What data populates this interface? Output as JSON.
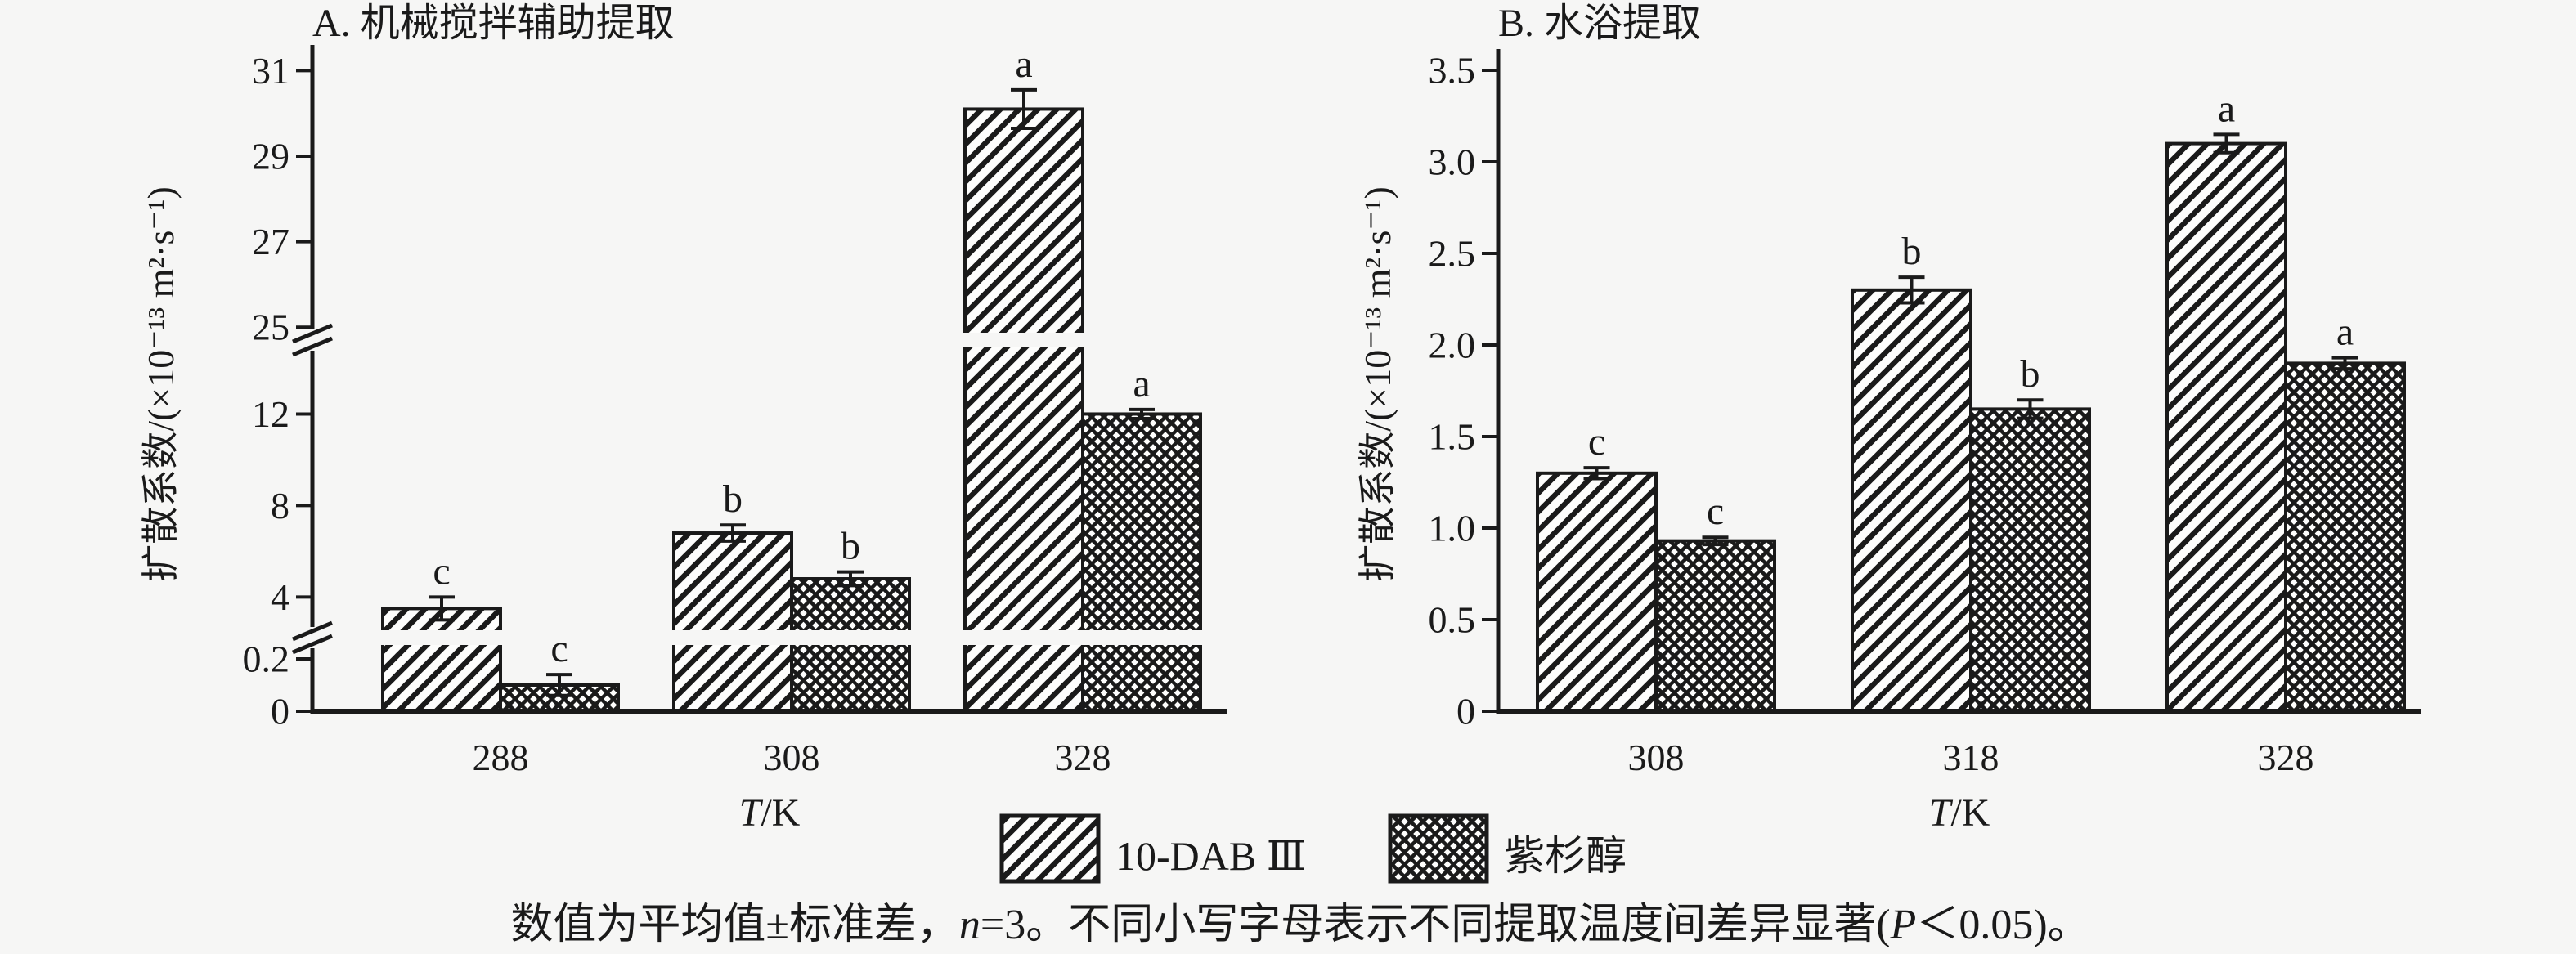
{
  "colors": {
    "background": "#f6f6f5",
    "ink": "#1a1a1a",
    "bar_fill_background": "#fdfdfc"
  },
  "chart_data": [
    {
      "type": "bar",
      "panel": "A",
      "title": "A. 机械搅拌辅助提取",
      "ylabel": "扩散系数/(×10⁻¹³ m²·s⁻¹)",
      "xlabel": "T/K",
      "xlabel_italic": "T",
      "xlabel_rest": "/K",
      "categories": [
        "288",
        "308",
        "328"
      ],
      "series": [
        {
          "name": "10-DAB Ⅲ",
          "pattern": "diagonal-hatch",
          "values": [
            3.5,
            6.8,
            30.1
          ],
          "errors": [
            0.5,
            0.35,
            0.45
          ],
          "sig_letters": [
            "c",
            "b",
            "a"
          ]
        },
        {
          "name": "紫杉醇",
          "pattern": "cross-hatch",
          "values": [
            0.1,
            4.8,
            12.0
          ],
          "errors": [
            0.04,
            0.3,
            0.2
          ],
          "sig_letters": [
            "c",
            "b",
            "a"
          ]
        }
      ],
      "y_ticks": [
        0,
        0.2,
        4,
        8,
        12,
        25,
        27,
        29,
        31
      ],
      "y_tick_labels": [
        "0",
        "0.2",
        "4",
        "8",
        "12",
        "25",
        "27",
        "29",
        "31"
      ],
      "axis_breaks": [
        [
          0.253,
          2.55
        ],
        [
          14.91,
          24.87
        ]
      ],
      "ylim": [
        0,
        31.6
      ],
      "grid": false
    },
    {
      "type": "bar",
      "panel": "B",
      "title": "B. 水浴提取",
      "ylabel": "扩散系数/(×10⁻¹³ m²·s⁻¹)",
      "xlabel": "T/K",
      "xlabel_italic": "T",
      "xlabel_rest": "/K",
      "categories": [
        "308",
        "318",
        "328"
      ],
      "series": [
        {
          "name": "10-DAB Ⅲ",
          "pattern": "diagonal-hatch",
          "values": [
            1.3,
            2.3,
            3.1
          ],
          "errors": [
            0.03,
            0.07,
            0.05
          ],
          "sig_letters": [
            "c",
            "b",
            "a"
          ]
        },
        {
          "name": "紫杉醇",
          "pattern": "cross-hatch",
          "values": [
            0.93,
            1.65,
            1.9
          ],
          "errors": [
            0.02,
            0.05,
            0.03
          ],
          "sig_letters": [
            "c",
            "b",
            "a"
          ]
        }
      ],
      "y_ticks": [
        0,
        0.5,
        1.0,
        1.5,
        2.0,
        2.5,
        3.0,
        3.5
      ],
      "y_tick_labels": [
        "0",
        "0.5",
        "1.0",
        "1.5",
        "2.0",
        "2.5",
        "3.0",
        "3.5"
      ],
      "axis_breaks": [],
      "ylim": [
        0,
        3.5
      ],
      "grid": false
    }
  ],
  "legend": {
    "position": "bottom-center",
    "items": [
      {
        "label": "10-DAB Ⅲ",
        "pattern": "diagonal-hatch"
      },
      {
        "label": "紫杉醇",
        "pattern": "cross-hatch"
      }
    ]
  },
  "caption": {
    "full": "数值为平均值±标准差，n=3。不同小写字母表示不同提取温度间差异显著(P＜0.05)。",
    "parts": [
      "数值为平均值±标准差，",
      "n",
      "=3。不同小写字母表示不同提取温度间差异显著(",
      "P",
      "＜0.05)。"
    ]
  }
}
